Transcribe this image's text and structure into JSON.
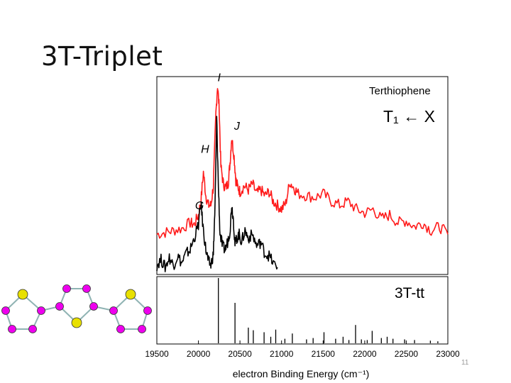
{
  "slide": {
    "title": "3T-Triplet",
    "page_number": "11"
  },
  "colors": {
    "experimental": "#ff1a1a",
    "calculated": "#000000",
    "sulfur_atom": "#e8e000",
    "carbon_atom": "#ee00ee",
    "bond": "#8fb3b3"
  },
  "chart_data": [
    {
      "type": "line",
      "panel": "top",
      "title": "Terthiophene",
      "subtitle": "T₁ ← X",
      "xlim": [
        19500,
        23000
      ],
      "ylim": [
        0,
        1
      ],
      "grid": false,
      "series": [
        {
          "color": "#ff1a1a",
          "x": [
            19500,
            19600,
            19700,
            19800,
            19900,
            19950,
            20000,
            20030,
            20060,
            20090,
            20120,
            20150,
            20180,
            20210,
            20230,
            20250,
            20270,
            20300,
            20330,
            20360,
            20380,
            20400,
            20430,
            20450,
            20470,
            20500,
            20550,
            20600,
            20650,
            20700,
            20750,
            20800,
            20850,
            20900,
            20950,
            21000,
            21050,
            21100,
            21150,
            21200,
            21300,
            21400,
            21500,
            21600,
            21700,
            21800,
            21900,
            22000,
            22100,
            22200,
            22300,
            22400,
            22500,
            22600,
            22700,
            22800,
            22900,
            23000
          ],
          "y": [
            0.2,
            0.21,
            0.22,
            0.23,
            0.26,
            0.25,
            0.3,
            0.37,
            0.52,
            0.4,
            0.35,
            0.35,
            0.45,
            0.82,
            0.97,
            0.85,
            0.55,
            0.46,
            0.44,
            0.47,
            0.57,
            0.7,
            0.6,
            0.48,
            0.45,
            0.42,
            0.45,
            0.43,
            0.46,
            0.41,
            0.43,
            0.4,
            0.42,
            0.37,
            0.35,
            0.33,
            0.36,
            0.47,
            0.44,
            0.41,
            0.4,
            0.39,
            0.41,
            0.37,
            0.35,
            0.37,
            0.33,
            0.31,
            0.33,
            0.28,
            0.3,
            0.26,
            0.27,
            0.24,
            0.26,
            0.22,
            0.24,
            0.2
          ]
        },
        {
          "color": "#000000",
          "x": [
            19500,
            19550,
            19600,
            19650,
            19700,
            19750,
            19800,
            19850,
            19900,
            19950,
            20000,
            20030,
            20060,
            20090,
            20120,
            20150,
            20180,
            20200,
            20220,
            20240,
            20260,
            20290,
            20320,
            20350,
            20380,
            20400,
            20420,
            20440,
            20460,
            20490,
            20520,
            20560,
            20600,
            20650,
            20700,
            20750,
            20800,
            20850,
            20900,
            20950
          ],
          "y": [
            0.04,
            0.07,
            0.03,
            0.08,
            0.04,
            0.09,
            0.05,
            0.1,
            0.12,
            0.18,
            0.25,
            0.36,
            0.22,
            0.12,
            0.06,
            0.04,
            0.1,
            0.35,
            0.8,
            0.45,
            0.2,
            0.14,
            0.12,
            0.16,
            0.22,
            0.35,
            0.28,
            0.15,
            0.18,
            0.2,
            0.16,
            0.22,
            0.18,
            0.2,
            0.14,
            0.16,
            0.1,
            0.09,
            0.05,
            0.03
          ]
        }
      ],
      "annotations": [
        {
          "label": "G",
          "x": 19960,
          "y": 0.33
        },
        {
          "label": "H",
          "x": 20030,
          "y": 0.62
        },
        {
          "label": "I",
          "x": 20230,
          "y": 0.99
        },
        {
          "label": "J",
          "x": 20430,
          "y": 0.74
        }
      ]
    },
    {
      "type": "bar",
      "panel": "bottom",
      "title": "3T-tt",
      "xlabel": "electron Binding Energy (cm⁻¹)",
      "xticks": [
        19500,
        20000,
        20500,
        21000,
        21500,
        22000,
        22500,
        23000
      ],
      "xlim": [
        19500,
        23000
      ],
      "ylim": [
        0,
        1
      ],
      "sticks": [
        {
          "x": 20240,
          "y": 1.0
        },
        {
          "x": 20440,
          "y": 0.62
        },
        {
          "x": 20600,
          "y": 0.24
        },
        {
          "x": 20660,
          "y": 0.2
        },
        {
          "x": 20790,
          "y": 0.17
        },
        {
          "x": 20870,
          "y": 0.1
        },
        {
          "x": 20930,
          "y": 0.21
        },
        {
          "x": 21040,
          "y": 0.07
        },
        {
          "x": 21130,
          "y": 0.15
        },
        {
          "x": 21300,
          "y": 0.06
        },
        {
          "x": 21380,
          "y": 0.08
        },
        {
          "x": 21510,
          "y": 0.17
        },
        {
          "x": 21650,
          "y": 0.07
        },
        {
          "x": 21740,
          "y": 0.1
        },
        {
          "x": 21810,
          "y": 0.05
        },
        {
          "x": 21890,
          "y": 0.28
        },
        {
          "x": 21960,
          "y": 0.06
        },
        {
          "x": 22030,
          "y": 0.05
        },
        {
          "x": 22090,
          "y": 0.19
        },
        {
          "x": 22200,
          "y": 0.08
        },
        {
          "x": 22270,
          "y": 0.1
        },
        {
          "x": 22340,
          "y": 0.07
        },
        {
          "x": 22480,
          "y": 0.06
        },
        {
          "x": 22600,
          "y": 0.05
        },
        {
          "x": 22790,
          "y": 0.04
        },
        {
          "x": 22880,
          "y": 0.03
        }
      ]
    }
  ],
  "molecule": {
    "sulfur_count": 3,
    "carbon_count": 12
  }
}
